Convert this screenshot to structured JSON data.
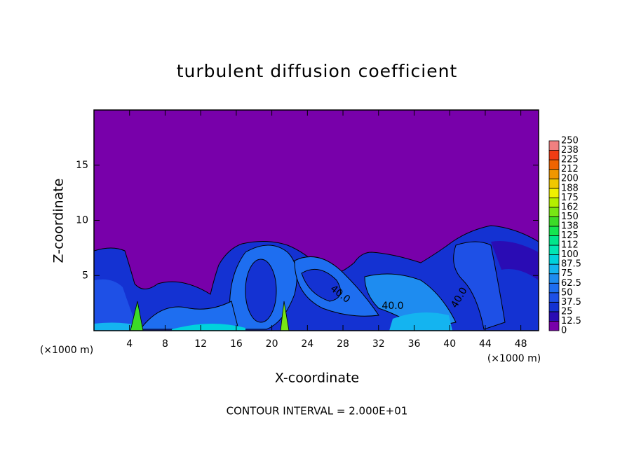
{
  "chart_data": {
    "type": "contour",
    "title": "turbulent diffusion coefficient",
    "x_label": "X-coordinate",
    "y_label": "Z-coordinate",
    "x_unit": "(×1000 m)",
    "y_unit": "(×1000 m)",
    "footer": "CONTOUR INTERVAL = 2.000E+01",
    "xlim": [
      0,
      50
    ],
    "xticks": [
      4,
      8,
      12,
      16,
      20,
      24,
      28,
      32,
      36,
      40,
      44,
      48
    ],
    "ylim": [
      0,
      20
    ],
    "yticks": [
      5,
      10,
      15
    ],
    "contour_labels": [
      "40.0",
      "40.0",
      "40.0"
    ],
    "colorbar": {
      "levels": [
        0,
        12.5,
        25,
        37.5,
        50,
        62.5,
        75,
        87.5,
        100,
        112,
        125,
        138,
        150,
        162,
        175,
        188,
        200,
        212,
        225,
        238,
        250
      ],
      "colors": [
        "#7800aa",
        "#2a0cb4",
        "#1432d2",
        "#1e50e6",
        "#1e6ef0",
        "#1e8cf0",
        "#14b4f0",
        "#00d2dc",
        "#00e6b4",
        "#00e68c",
        "#14e650",
        "#3cdc28",
        "#78e614",
        "#b4f000",
        "#f0f000",
        "#f0c800",
        "#f09600",
        "#f06400",
        "#f03c14",
        "#f08080"
      ]
    }
  }
}
